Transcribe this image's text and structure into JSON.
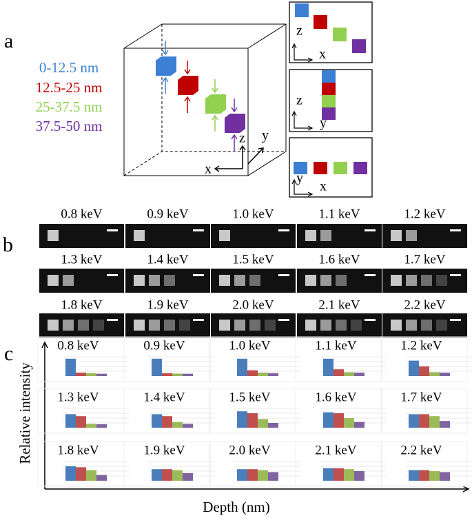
{
  "panel_a": {
    "label": "a",
    "legend": [
      {
        "text": "0-12.5 nm",
        "color": "#3d7fd4"
      },
      {
        "text": "12.5-25 nm",
        "color": "#c00000"
      },
      {
        "text": "25-37.5 nm",
        "color": "#92d050"
      },
      {
        "text": "37.5-50 nm",
        "color": "#7030a0"
      }
    ],
    "cube_axes": {
      "x": "x",
      "y": "y",
      "z": "z"
    },
    "projections": [
      {
        "vertical": "z",
        "horizontal": "x"
      },
      {
        "vertical": "z",
        "horizontal": "y"
      },
      {
        "vertical": "y",
        "horizontal": "x"
      }
    ]
  },
  "panel_b": {
    "label": "b",
    "energies": [
      "0.8 keV",
      "0.9 keV",
      "1.0 keV",
      "1.1 keV",
      "1.2 keV",
      "1.3 keV",
      "1.4 keV",
      "1.5 keV",
      "1.6 keV",
      "1.7 keV",
      "1.8 keV",
      "1.9 keV",
      "2.0 keV",
      "2.1 keV",
      "2.2 keV"
    ]
  },
  "panel_c": {
    "label": "c",
    "y_label": "Relative intensity",
    "x_label": "Depth (nm)"
  },
  "chart_data": [
    {
      "type": "bar",
      "title": "0.8 keV",
      "values": [
        0.9,
        0.18,
        0.15,
        0.12
      ],
      "colors": [
        "#4a7ebb",
        "#c0504d",
        "#9bbb59",
        "#8064a2"
      ],
      "ylim": [
        0,
        1
      ]
    },
    {
      "type": "bar",
      "title": "0.9 keV",
      "values": [
        0.9,
        0.15,
        0.13,
        0.12
      ],
      "colors": [
        "#4a7ebb",
        "#c0504d",
        "#9bbb59",
        "#8064a2"
      ],
      "ylim": [
        0,
        1
      ]
    },
    {
      "type": "bar",
      "title": "1.0 keV",
      "values": [
        0.9,
        0.3,
        0.18,
        0.15
      ],
      "colors": [
        "#4a7ebb",
        "#c0504d",
        "#9bbb59",
        "#8064a2"
      ],
      "ylim": [
        0,
        1
      ]
    },
    {
      "type": "bar",
      "title": "1.1 keV",
      "values": [
        0.9,
        0.35,
        0.2,
        0.18
      ],
      "colors": [
        "#4a7ebb",
        "#c0504d",
        "#9bbb59",
        "#8064a2"
      ],
      "ylim": [
        0,
        1
      ]
    },
    {
      "type": "bar",
      "title": "1.2 keV",
      "values": [
        0.8,
        0.5,
        0.2,
        0.18
      ],
      "colors": [
        "#4a7ebb",
        "#c0504d",
        "#9bbb59",
        "#8064a2"
      ],
      "ylim": [
        0,
        1
      ]
    },
    {
      "type": "bar",
      "title": "1.3 keV",
      "values": [
        0.7,
        0.6,
        0.2,
        0.18
      ],
      "colors": [
        "#4a7ebb",
        "#c0504d",
        "#9bbb59",
        "#8064a2"
      ],
      "ylim": [
        0,
        1
      ]
    },
    {
      "type": "bar",
      "title": "1.4 keV",
      "values": [
        0.7,
        0.6,
        0.3,
        0.2
      ],
      "colors": [
        "#4a7ebb",
        "#c0504d",
        "#9bbb59",
        "#8064a2"
      ],
      "ylim": [
        0,
        1
      ]
    },
    {
      "type": "bar",
      "title": "1.5 keV",
      "values": [
        0.85,
        0.75,
        0.45,
        0.25
      ],
      "colors": [
        "#4a7ebb",
        "#c0504d",
        "#9bbb59",
        "#8064a2"
      ],
      "ylim": [
        0,
        1
      ]
    },
    {
      "type": "bar",
      "title": "1.6 keV",
      "values": [
        0.8,
        0.75,
        0.5,
        0.3
      ],
      "colors": [
        "#4a7ebb",
        "#c0504d",
        "#9bbb59",
        "#8064a2"
      ],
      "ylim": [
        0,
        1
      ]
    },
    {
      "type": "bar",
      "title": "1.7 keV",
      "values": [
        0.7,
        0.7,
        0.6,
        0.35
      ],
      "colors": [
        "#4a7ebb",
        "#c0504d",
        "#9bbb59",
        "#8064a2"
      ],
      "ylim": [
        0,
        1
      ]
    },
    {
      "type": "bar",
      "title": "1.8 keV",
      "values": [
        0.75,
        0.7,
        0.55,
        0.3
      ],
      "colors": [
        "#4a7ebb",
        "#c0504d",
        "#9bbb59",
        "#8064a2"
      ],
      "ylim": [
        0,
        1
      ]
    },
    {
      "type": "bar",
      "title": "1.9 keV",
      "values": [
        0.6,
        0.6,
        0.55,
        0.4
      ],
      "colors": [
        "#4a7ebb",
        "#c0504d",
        "#9bbb59",
        "#8064a2"
      ],
      "ylim": [
        0,
        1
      ]
    },
    {
      "type": "bar",
      "title": "2.0 keV",
      "values": [
        0.6,
        0.6,
        0.55,
        0.45
      ],
      "colors": [
        "#4a7ebb",
        "#c0504d",
        "#9bbb59",
        "#8064a2"
      ],
      "ylim": [
        0,
        1
      ]
    },
    {
      "type": "bar",
      "title": "2.1 keV",
      "values": [
        0.65,
        0.65,
        0.6,
        0.5
      ],
      "colors": [
        "#4a7ebb",
        "#c0504d",
        "#9bbb59",
        "#8064a2"
      ],
      "ylim": [
        0,
        1
      ]
    },
    {
      "type": "bar",
      "title": "2.2 keV",
      "values": [
        0.55,
        0.55,
        0.5,
        0.45
      ],
      "colors": [
        "#4a7ebb",
        "#c0504d",
        "#9bbb59",
        "#8064a2"
      ],
      "ylim": [
        0,
        1
      ]
    }
  ]
}
